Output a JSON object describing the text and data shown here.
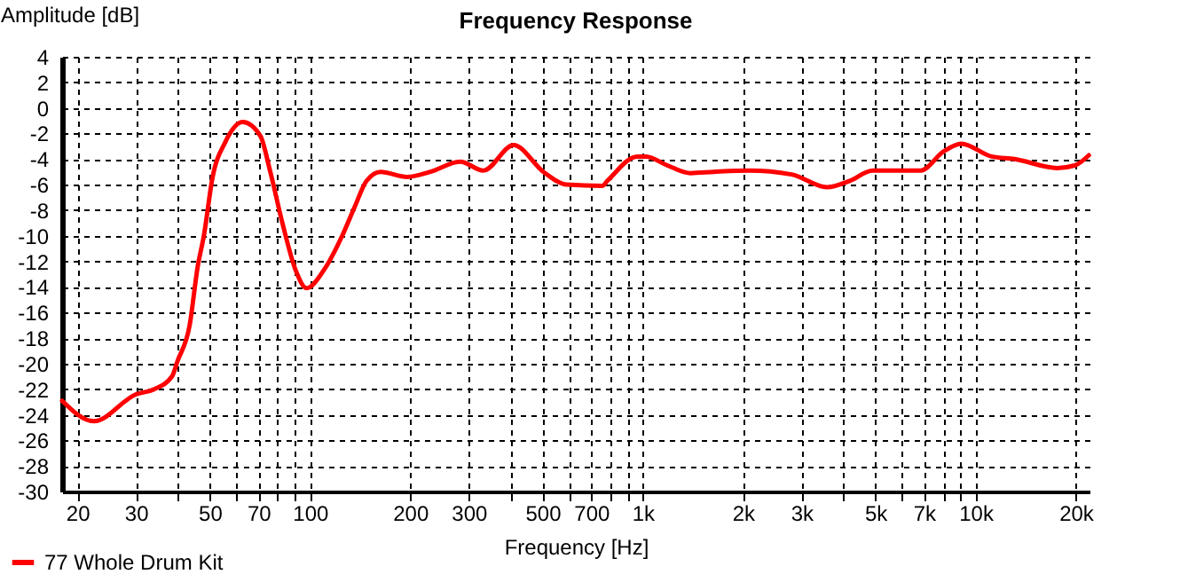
{
  "chart_data": {
    "type": "line",
    "title": "Frequency Response",
    "xlabel": "Frequency [Hz]",
    "ylabel": "Amplitude [dB]",
    "log": "x",
    "grid": true,
    "legend": "bottom left",
    "marker": "none",
    "line_style": "solid",
    "xlim": [
      18,
      22000
    ],
    "ylim": [
      -30,
      4
    ],
    "xticks": [
      20,
      30,
      {
        "value": 40,
        "label": null
      },
      50,
      {
        "value": 60,
        "label": null
      },
      70,
      {
        "value": 80,
        "label": null
      },
      {
        "value": 90,
        "label": null
      },
      100,
      200,
      300,
      {
        "value": 400,
        "label": null
      },
      500,
      {
        "value": 600,
        "label": null
      },
      700,
      {
        "value": 800,
        "label": null
      },
      {
        "value": 900,
        "label": null
      },
      {
        "value": 1000,
        "label": "1k"
      },
      {
        "value": 2000,
        "label": "2k"
      },
      {
        "value": 3000,
        "label": "3k"
      },
      {
        "value": 4000,
        "label": null
      },
      {
        "value": 5000,
        "label": "5k"
      },
      {
        "value": 6000,
        "label": null
      },
      {
        "value": 7000,
        "label": "7k"
      },
      {
        "value": 8000,
        "label": null
      },
      {
        "value": 9000,
        "label": null
      },
      {
        "value": 10000,
        "label": "10k"
      },
      {
        "value": 20000,
        "label": "20k"
      }
    ],
    "yticks": [
      -30,
      -28,
      -26,
      -24,
      -22,
      -20,
      -18,
      -16,
      -14,
      -12,
      -10,
      -8,
      -6,
      -4,
      -2,
      0,
      2,
      4
    ],
    "series": [
      {
        "name": "77 Whole Drum Kit",
        "color": "#ff0000",
        "x": [
          18,
          22.4,
          30,
          34,
          38.5,
          40,
          43.5,
          46,
          48,
          51,
          55.6,
          62.8,
          71,
          76,
          83,
          90.6,
          97.7,
          110,
          125,
          136,
          148,
          163,
          196,
          230,
          283,
          332,
          409,
          503,
          590,
          755,
          783,
          964,
          1023,
          1186,
          1392,
          1633,
          2085,
          2800,
          3573,
          4190,
          4910,
          6840,
          8020,
          9060,
          11170,
          13100,
          17600,
          19860,
          21900
        ],
        "values": [
          -22.9,
          -24.5,
          -22.4,
          -22,
          -21,
          -19.8,
          -17,
          -12.4,
          -10,
          -5.4,
          -2.7,
          -1.1,
          -2.2,
          -5,
          -9.2,
          -12.7,
          -14.1,
          -12.7,
          -10,
          -7.8,
          -5.7,
          -5,
          -5.4,
          -5,
          -4.2,
          -4.9,
          -2.9,
          -5,
          -6,
          -6.1,
          -5.7,
          -3.8,
          -3.8,
          -4.5,
          -5.1,
          -5,
          -4.9,
          -5.2,
          -6.2,
          -5.7,
          -4.9,
          -4.9,
          -3.4,
          -2.8,
          -3.8,
          -4,
          -4.7,
          -4.5,
          -3.7
        ]
      }
    ]
  }
}
